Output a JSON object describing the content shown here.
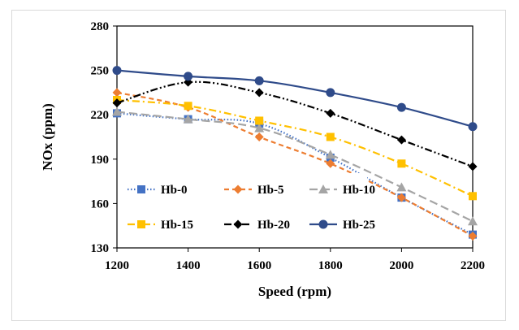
{
  "chart_data": {
    "type": "line",
    "title": "",
    "xlabel": "Speed (rpm)",
    "ylabel": "NOx (ppm)",
    "x": [
      1200,
      1400,
      1600,
      1800,
      2000,
      2200
    ],
    "xlim": [
      1200,
      2200
    ],
    "ylim": [
      130,
      280
    ],
    "yticks": [
      130,
      160,
      190,
      220,
      250,
      280
    ],
    "grid": false,
    "legend_position": "inside-bottom",
    "series": [
      {
        "name": "Hb-0",
        "values": [
          221,
          217,
          214,
          191,
          164,
          139
        ],
        "color": "#4472c4",
        "marker": "square",
        "dash": "dot"
      },
      {
        "name": "Hb-5",
        "values": [
          235,
          225,
          205,
          187,
          164,
          138
        ],
        "color": "#ed7d31",
        "marker": "diamond",
        "dash": "dash"
      },
      {
        "name": "Hb-10",
        "values": [
          222,
          217,
          211,
          193,
          171,
          148
        ],
        "color": "#a5a5a5",
        "marker": "triangle",
        "dash": "longdash"
      },
      {
        "name": "Hb-15",
        "values": [
          230,
          226,
          216,
          205,
          187,
          165
        ],
        "color": "#ffc000",
        "marker": "square",
        "dash": "dashdot"
      },
      {
        "name": "Hb-20",
        "values": [
          228,
          242,
          235,
          221,
          203,
          185
        ],
        "color": "#000000",
        "marker": "diamond",
        "dash": "dashdotdot"
      },
      {
        "name": "Hb-25",
        "values": [
          250,
          246,
          243,
          235,
          225,
          212
        ],
        "color": "#2f4b8a",
        "marker": "circle",
        "dash": "solid"
      }
    ]
  }
}
